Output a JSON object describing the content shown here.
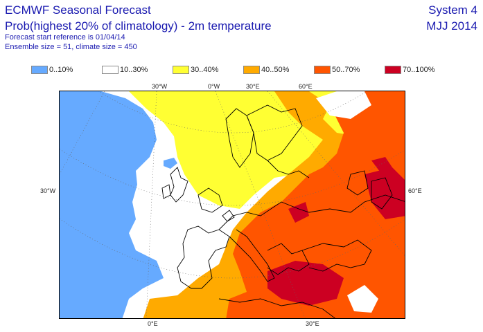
{
  "header": {
    "title": "ECMWF Seasonal Forecast",
    "subtitle": "Prob(highest 20% of climatology) - 2m temperature",
    "start_ref": "Forecast start reference is 01/04/14",
    "ensemble": "Ensemble size = 51, climate size = 450",
    "system": "System 4",
    "period": "MJJ 2014"
  },
  "legend": [
    {
      "label": "0..10%",
      "color": "#66aaff"
    },
    {
      "label": "10..30%",
      "color": "#ffffff"
    },
    {
      "label": "30..40%",
      "color": "#ffff33"
    },
    {
      "label": "40..50%",
      "color": "#ffaa00"
    },
    {
      "label": "50..70%",
      "color": "#ff5500"
    },
    {
      "label": "70..100%",
      "color": "#cc0022"
    }
  ],
  "grid_labels": {
    "top": [
      "30°W",
      "0°W",
      "30°E",
      "60°E"
    ],
    "left": "30°W",
    "right": "60°E",
    "bottom": [
      "0°E",
      "30°E"
    ]
  }
}
